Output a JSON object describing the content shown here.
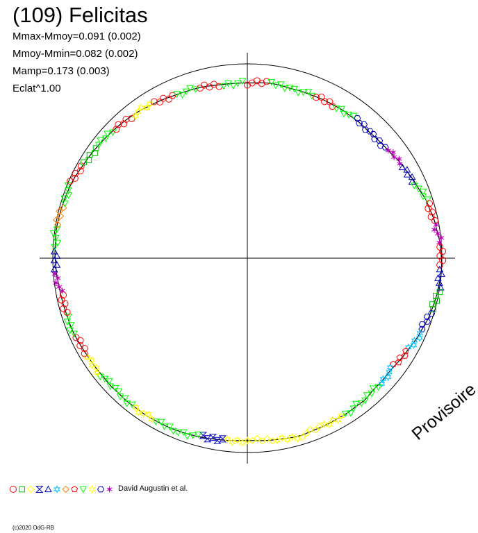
{
  "title": "(109) Felicitas",
  "stats": {
    "mmax_mmoy": "Mmax-Mmoy=0.091 (0.002)",
    "mmoy_mmin": "Mmoy-Mmin=0.082 (0.002)",
    "mamp": "Mamp=0.173 (0.003)",
    "eclat": "Eclat^1.00"
  },
  "watermark": "Provisoire",
  "legend_author": "David Augustin et al.",
  "copyright": "(c)2020 OdG-RB",
  "colors": {
    "red": "#ff0000",
    "green": "#00c000",
    "yellow": "#ffff00",
    "blue": "#0000c0",
    "cyan": "#00c0ff",
    "magenta": "#c000c0",
    "lime": "#00ff00",
    "orange": "#ff8000"
  },
  "chart_data": {
    "type": "polar-lightcurve",
    "description_axes": "phase as angle (clockwise from top), radius = magnitude deviation",
    "amplitude": 0.173,
    "mmax_minus_mmoy": 0.091,
    "mmoy_minus_mmin": 0.082,
    "eclat_exponent": 1.0,
    "legend_markers": [
      {
        "symbol": "circle",
        "color": "#ff0000"
      },
      {
        "symbol": "square",
        "color": "#00c000"
      },
      {
        "symbol": "diamond",
        "color": "#ffff00"
      },
      {
        "symbol": "bowtie",
        "color": "#0000c0"
      },
      {
        "symbol": "triangle-up",
        "color": "#0000c0"
      },
      {
        "symbol": "star",
        "color": "#00c0ff"
      },
      {
        "symbol": "diamond",
        "color": "#ff8000"
      },
      {
        "symbol": "pentagon",
        "color": "#ff0000"
      },
      {
        "symbol": "triangle-down",
        "color": "#00ff00"
      },
      {
        "symbol": "star",
        "color": "#ffff00"
      },
      {
        "symbol": "hexagon",
        "color": "#0000c0"
      },
      {
        "symbol": "asterisk",
        "color": "#c000c0"
      }
    ],
    "observations": [
      {
        "phase": 0.0,
        "r": 0.98,
        "color": "#ff0000",
        "symbol": "circle"
      },
      {
        "phase": 0.02,
        "r": 0.985,
        "color": "#00ff00",
        "symbol": "triangle-down"
      },
      {
        "phase": 0.04,
        "r": 0.975,
        "color": "#00ff00",
        "symbol": "triangle-down"
      },
      {
        "phase": 0.06,
        "r": 0.97,
        "color": "#ff0000",
        "symbol": "circle"
      },
      {
        "phase": 0.08,
        "r": 0.965,
        "color": "#00ff00",
        "symbol": "triangle-down"
      },
      {
        "phase": 0.1,
        "r": 0.955,
        "color": "#0000c0",
        "symbol": "hexagon"
      },
      {
        "phase": 0.12,
        "r": 0.945,
        "color": "#0000c0",
        "symbol": "hexagon"
      },
      {
        "phase": 0.14,
        "r": 0.945,
        "color": "#c000c0",
        "symbol": "asterisk"
      },
      {
        "phase": 0.16,
        "r": 0.955,
        "color": "#0000c0",
        "symbol": "triangle-up"
      },
      {
        "phase": 0.18,
        "r": 0.965,
        "color": "#00ff00",
        "symbol": "triangle-down"
      },
      {
        "phase": 0.2,
        "r": 0.98,
        "color": "#ff0000",
        "symbol": "circle"
      },
      {
        "phase": 0.22,
        "r": 0.99,
        "color": "#c000c0",
        "symbol": "asterisk"
      },
      {
        "phase": 0.24,
        "r": 1.0,
        "color": "#ff0000",
        "symbol": "circle"
      },
      {
        "phase": 0.26,
        "r": 1.005,
        "color": "#0000c0",
        "symbol": "triangle-up"
      },
      {
        "phase": 0.28,
        "r": 1.0,
        "color": "#00c000",
        "symbol": "square"
      },
      {
        "phase": 0.3,
        "r": 0.995,
        "color": "#0000c0",
        "symbol": "hexagon"
      },
      {
        "phase": 0.32,
        "r": 0.985,
        "color": "#00c0ff",
        "symbol": "star"
      },
      {
        "phase": 0.34,
        "r": 0.975,
        "color": "#ff0000",
        "symbol": "pentagon"
      },
      {
        "phase": 0.36,
        "r": 0.97,
        "color": "#00c0ff",
        "symbol": "star"
      },
      {
        "phase": 0.38,
        "r": 0.98,
        "color": "#00ff00",
        "symbol": "triangle-down"
      },
      {
        "phase": 0.4,
        "r": 1.0,
        "color": "#00ff00",
        "symbol": "triangle-down"
      },
      {
        "phase": 0.42,
        "r": 1.01,
        "color": "#ffff00",
        "symbol": "star"
      },
      {
        "phase": 0.44,
        "r": 1.02,
        "color": "#ffff00",
        "symbol": "diamond"
      },
      {
        "phase": 0.46,
        "r": 1.03,
        "color": "#ffff00",
        "symbol": "star"
      },
      {
        "phase": 0.48,
        "r": 1.025,
        "color": "#ffff00",
        "symbol": "diamond"
      },
      {
        "phase": 0.5,
        "r": 1.02,
        "color": "#ffff00",
        "symbol": "star"
      },
      {
        "phase": 0.52,
        "r": 1.025,
        "color": "#0000c0",
        "symbol": "bowtie"
      },
      {
        "phase": 0.54,
        "r": 1.03,
        "color": "#00ff00",
        "symbol": "triangle-down"
      },
      {
        "phase": 0.56,
        "r": 1.03,
        "color": "#00ff00",
        "symbol": "triangle-down"
      },
      {
        "phase": 0.58,
        "r": 1.025,
        "color": "#ffff00",
        "symbol": "star"
      },
      {
        "phase": 0.6,
        "r": 1.015,
        "color": "#00ff00",
        "symbol": "triangle-down"
      },
      {
        "phase": 0.62,
        "r": 1.005,
        "color": "#00ff00",
        "symbol": "triangle-down"
      },
      {
        "phase": 0.64,
        "r": 0.995,
        "color": "#ffff00",
        "symbol": "star"
      },
      {
        "phase": 0.66,
        "r": 0.99,
        "color": "#ff0000",
        "symbol": "circle"
      },
      {
        "phase": 0.68,
        "r": 0.99,
        "color": "#00ff00",
        "symbol": "triangle-down"
      },
      {
        "phase": 0.7,
        "r": 0.985,
        "color": "#ff0000",
        "symbol": "circle"
      },
      {
        "phase": 0.72,
        "r": 0.985,
        "color": "#c000c0",
        "symbol": "asterisk"
      },
      {
        "phase": 0.74,
        "r": 0.99,
        "color": "#0000c0",
        "symbol": "triangle-up"
      },
      {
        "phase": 0.76,
        "r": 0.995,
        "color": "#00ff00",
        "symbol": "triangle-down"
      },
      {
        "phase": 0.78,
        "r": 1.0,
        "color": "#ff8000",
        "symbol": "diamond"
      },
      {
        "phase": 0.8,
        "r": 1.0,
        "color": "#00ff00",
        "symbol": "triangle-down"
      },
      {
        "phase": 0.82,
        "r": 1.0,
        "color": "#ff0000",
        "symbol": "circle"
      },
      {
        "phase": 0.84,
        "r": 0.995,
        "color": "#00c000",
        "symbol": "square"
      },
      {
        "phase": 0.86,
        "r": 0.995,
        "color": "#00ff00",
        "symbol": "triangle-down"
      },
      {
        "phase": 0.88,
        "r": 0.995,
        "color": "#ff0000",
        "symbol": "circle"
      },
      {
        "phase": 0.9,
        "r": 0.995,
        "color": "#ffff00",
        "symbol": "star"
      },
      {
        "phase": 0.92,
        "r": 0.99,
        "color": "#ff0000",
        "symbol": "circle"
      },
      {
        "phase": 0.94,
        "r": 0.985,
        "color": "#00ff00",
        "symbol": "triangle-down"
      },
      {
        "phase": 0.96,
        "r": 0.985,
        "color": "#ff0000",
        "symbol": "circle"
      },
      {
        "phase": 0.98,
        "r": 0.98,
        "color": "#00ff00",
        "symbol": "triangle-down"
      }
    ]
  }
}
